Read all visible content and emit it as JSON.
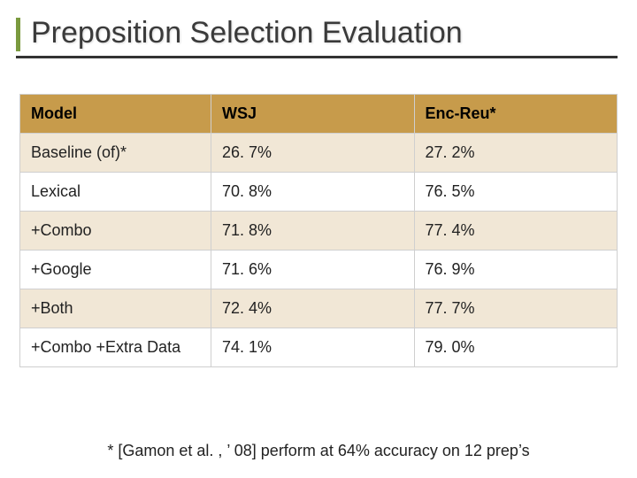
{
  "title": "Preposition Selection Evaluation",
  "table": {
    "columns": [
      "Model",
      "WSJ",
      "Enc-Reu*"
    ],
    "rows": [
      [
        "Baseline (of)*",
        "26. 7%",
        "27. 2%"
      ],
      [
        "Lexical",
        "70. 8%",
        "76. 5%"
      ],
      [
        "+Combo",
        "71. 8%",
        "77. 4%"
      ],
      [
        "+Google",
        "71. 6%",
        "76. 9%"
      ],
      [
        "+Both",
        "72. 4%",
        "77. 7%"
      ],
      [
        "+Combo +Extra Data",
        "74. 1%",
        "79. 0%"
      ]
    ],
    "header_bg": "#c79b4b",
    "alt_row_bg": "#f1e7d6",
    "plain_row_bg": "#ffffff",
    "border_color": "#cfcfcf",
    "font_size": 18
  },
  "footnote": "* [Gamon et al. , ’ 08] perform at 64% accuracy on 12 prep’s",
  "accent_color": "#7a9a3e",
  "title_underline_color": "#333333"
}
